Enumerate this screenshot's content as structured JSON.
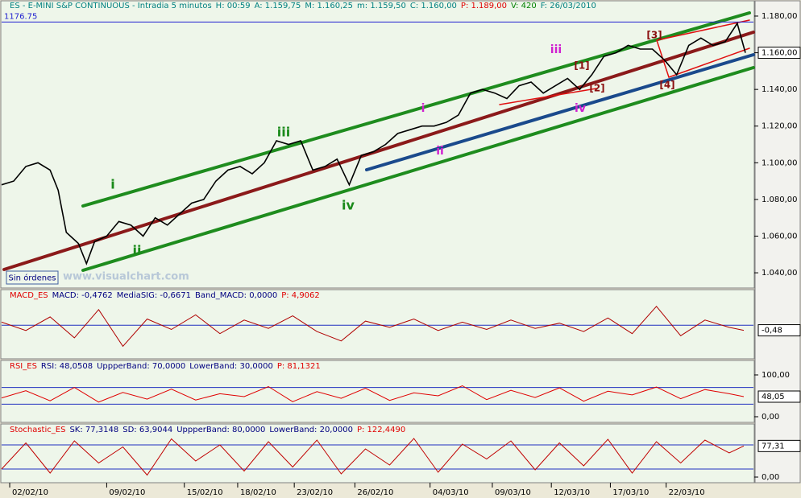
{
  "chart_data": [
    {
      "type": "line",
      "header": [
        {
          "text": "ES - E-MINI S&P CONTINUOUS - Intradia 5 minutos",
          "color": "#008080"
        },
        {
          "text": "H: 00:59",
          "color": "#008080"
        },
        {
          "text": "A: 1.159,75",
          "color": "#008080"
        },
        {
          "text": "M: 1.160,25",
          "color": "#008080"
        },
        {
          "text": "m: 1.159,50",
          "color": "#008080"
        },
        {
          "text": "C: 1.160,00",
          "color": "#008080"
        },
        {
          "text": "P: 1.189,00",
          "color": "#e00000"
        },
        {
          "text": "V: 420",
          "color": "#008000"
        },
        {
          "text": "F: 26/03/2010",
          "color": "#008080"
        }
      ],
      "x": [
        0,
        15,
        30,
        45,
        60,
        70,
        80,
        95,
        105,
        115,
        130,
        145,
        160,
        175,
        190,
        205,
        220,
        235,
        250,
        265,
        280,
        295,
        310,
        325,
        340,
        355,
        370,
        385,
        400,
        415,
        430,
        445,
        460,
        475,
        490,
        505,
        520,
        535,
        550,
        565,
        580,
        595,
        610,
        625,
        640,
        655,
        670,
        685,
        700,
        715,
        730,
        745,
        760,
        775,
        790,
        805,
        820,
        835,
        850,
        865,
        880,
        895,
        910,
        920
      ],
      "series": [
        {
          "color": "#000000",
          "values": [
            1088,
            1090,
            1098,
            1100,
            1096,
            1085,
            1062,
            1056,
            1045,
            1057,
            1060,
            1068,
            1066,
            1060,
            1070,
            1066,
            1072,
            1078,
            1080,
            1090,
            1096,
            1098,
            1094,
            1100,
            1112,
            1110,
            1112,
            1096,
            1098,
            1102,
            1088,
            1104,
            1106,
            1110,
            1116,
            1118,
            1120,
            1120,
            1122,
            1126,
            1138,
            1140,
            1138,
            1135,
            1142,
            1144,
            1138,
            1142,
            1146,
            1140,
            1148,
            1158,
            1160,
            1164,
            1162,
            1162,
            1156,
            1148,
            1164,
            1168,
            1164,
            1166,
            1176,
            1160
          ]
        }
      ],
      "xlim": [
        0,
        930
      ],
      "xticks": [
        {
          "value": 10,
          "label": "02/02/10"
        },
        {
          "value": 130,
          "label": "09/02/10"
        },
        {
          "value": 226,
          "label": "15/02/10"
        },
        {
          "value": 292,
          "label": "18/02/10"
        },
        {
          "value": 362,
          "label": "23/02/10"
        },
        {
          "value": 437,
          "label": "26/02/10"
        },
        {
          "value": 530,
          "label": "04/03/10"
        },
        {
          "value": 607,
          "label": "09/03/10"
        },
        {
          "value": 680,
          "label": "12/03/10"
        },
        {
          "value": 753,
          "label": "17/03/10"
        },
        {
          "value": 822,
          "label": "22/03/10"
        }
      ],
      "ylim": [
        1031.7,
        1183.5
      ],
      "yticks": [
        {
          "value": 1040,
          "label": "1.040,00"
        },
        {
          "value": 1060,
          "label": "1.060,00"
        },
        {
          "value": 1080,
          "label": "1.080,00"
        },
        {
          "value": 1100,
          "label": "1.100,00"
        },
        {
          "value": 1120,
          "label": "1.120,00"
        },
        {
          "value": 1140,
          "label": "1.140,00"
        },
        {
          "value": 1160,
          "label": "1.160,00"
        },
        {
          "value": 1180,
          "label": "1.180,00"
        }
      ],
      "last": {
        "value": 1160,
        "label": "1.160,00"
      },
      "hline": 1176.75,
      "annotations": [
        {
          "text": "i",
          "color": "#1a8a1a"
        },
        {
          "text": "ii",
          "color": "#1a8a1a"
        },
        {
          "text": "iii",
          "color": "#1a8a1a"
        },
        {
          "text": "iv",
          "color": "#1a8a1a"
        },
        {
          "text": "i",
          "color": "#d020d0"
        },
        {
          "text": "ii",
          "color": "#d020d0"
        },
        {
          "text": "iii",
          "color": "#d020d0"
        },
        {
          "text": "iv",
          "color": "#d020d0"
        },
        {
          "text": "[1]",
          "color": "#8b1010"
        },
        {
          "text": "[2]",
          "color": "#8b1010"
        },
        {
          "text": "[3]",
          "color": "#8b1010"
        },
        {
          "text": "[4]",
          "color": "#8b1010"
        }
      ]
    },
    {
      "type": "line",
      "header": [
        {
          "text": "MACD_ES",
          "color": "#e00000"
        },
        {
          "text": "MACD: -0,4762",
          "color": "#000080"
        },
        {
          "text": "MediaSIG: -0,6671",
          "color": "#000080"
        },
        {
          "text": "Band_MACD: 0,0000",
          "color": "#000080"
        },
        {
          "text": "P: 4,9062",
          "color": "#e00000"
        }
      ],
      "x": [
        0,
        30,
        60,
        90,
        120,
        150,
        180,
        210,
        240,
        270,
        300,
        330,
        360,
        390,
        420,
        450,
        480,
        510,
        540,
        570,
        600,
        630,
        660,
        690,
        720,
        750,
        780,
        810,
        840,
        870,
        900,
        918
      ],
      "series": [
        {
          "color": "#b00000",
          "values": [
            0.3,
            -0.5,
            0.8,
            -1.2,
            1.5,
            -2.0,
            0.6,
            -0.4,
            1.0,
            -0.8,
            0.5,
            -0.3,
            0.9,
            -0.6,
            -1.5,
            0.4,
            -0.2,
            0.6,
            -0.5,
            0.3,
            -0.4,
            0.5,
            -0.3,
            0.2,
            -0.6,
            0.7,
            -0.8,
            1.8,
            -1.0,
            0.5,
            -0.2,
            -0.48
          ]
        }
      ],
      "xlim": [
        0,
        930
      ],
      "ylim": [
        -3.2,
        3.4
      ],
      "bands": [
        0
      ],
      "last": {
        "value": -0.48,
        "label": "-0,48"
      }
    },
    {
      "type": "line",
      "header": [
        {
          "text": "RSI_ES",
          "color": "#e00000"
        },
        {
          "text": "RSI: 48,0508",
          "color": "#000080"
        },
        {
          "text": "UppperBand: 70,0000",
          "color": "#000080"
        },
        {
          "text": "LowerBand: 30,0000",
          "color": "#000080"
        },
        {
          "text": "P: 81,1321",
          "color": "#e00000"
        }
      ],
      "x": [
        0,
        30,
        60,
        90,
        120,
        150,
        180,
        210,
        240,
        270,
        300,
        330,
        360,
        390,
        420,
        450,
        480,
        510,
        540,
        570,
        600,
        630,
        660,
        690,
        720,
        750,
        780,
        810,
        840,
        870,
        900,
        918
      ],
      "series": [
        {
          "color": "#e00000",
          "values": [
            45,
            62,
            38,
            70,
            35,
            58,
            42,
            66,
            40,
            55,
            48,
            72,
            36,
            60,
            44,
            68,
            39,
            57,
            50,
            74,
            41,
            63,
            46,
            69,
            37,
            61,
            52,
            71,
            43,
            65,
            55,
            48.05
          ]
        }
      ],
      "xlim": [
        0,
        930
      ],
      "ylim": [
        -13.5,
        134.6
      ],
      "bands": [
        70,
        30
      ],
      "yticks": [
        {
          "value": 100,
          "label": "100,00"
        },
        {
          "value": 0,
          "label": "0,00"
        }
      ],
      "last": {
        "value": 48.05,
        "label": "48,05"
      }
    },
    {
      "type": "line",
      "header": [
        {
          "text": "Stochastic_ES",
          "color": "#e00000"
        },
        {
          "text": "SK: 77,3148",
          "color": "#000080"
        },
        {
          "text": "SD: 63,9044",
          "color": "#000080"
        },
        {
          "text": "UppperBand: 80,0000",
          "color": "#000080"
        },
        {
          "text": "LowerBand: 20,0000",
          "color": "#000080"
        },
        {
          "text": "P: 122,4490",
          "color": "#e00000"
        }
      ],
      "x": [
        0,
        30,
        60,
        90,
        120,
        150,
        180,
        210,
        240,
        270,
        300,
        330,
        360,
        390,
        420,
        450,
        480,
        510,
        540,
        570,
        600,
        630,
        660,
        690,
        720,
        750,
        780,
        810,
        840,
        870,
        900,
        918
      ],
      "series": [
        {
          "color": "#c00000",
          "values": [
            20,
            85,
            10,
            90,
            35,
            75,
            5,
            95,
            40,
            80,
            15,
            88,
            25,
            92,
            8,
            70,
            30,
            96,
            12,
            82,
            45,
            90,
            18,
            85,
            28,
            94,
            10,
            88,
            35,
            92,
            60,
            77.31
          ]
        }
      ],
      "xlim": [
        0,
        930
      ],
      "ylim": [
        -14,
        132
      ],
      "bands": [
        80,
        20
      ],
      "yticks": [
        {
          "value": 0,
          "label": "0,00"
        }
      ],
      "last": {
        "value": 77.31,
        "label": "77,31"
      }
    }
  ],
  "ui": {
    "button": "Sin órdenes",
    "watermark": "www.visualchart.com"
  }
}
